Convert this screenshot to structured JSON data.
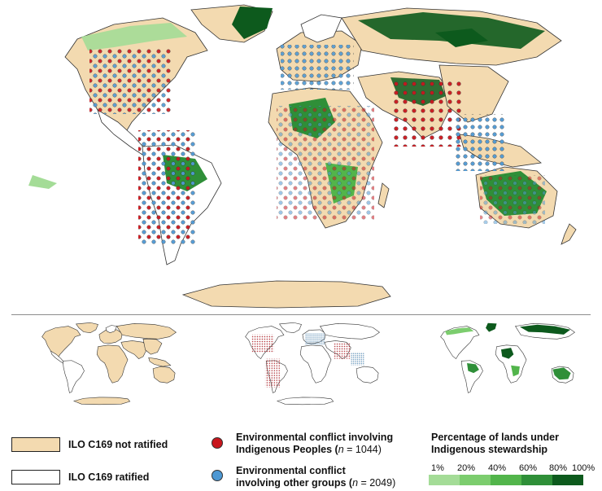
{
  "legend": {
    "not_ratified": "ILO C169 not ratified",
    "ratified": "ILO C169 ratified",
    "indigenous_line1": "Environmental conflict involving",
    "indigenous_line2_text": "Indigenous Peoples (",
    "indigenous_n_label": "n",
    "indigenous_n_value": " = 1044",
    "indigenous_close": ")",
    "other_line1": "Environmental conflict",
    "other_line2_text": "involving other groups (",
    "other_n_label": "n",
    "other_n_value": " = 2049",
    "other_close": ")",
    "stewardship_line1": "Percentage of lands under",
    "stewardship_line2": "Indigenous stewardship",
    "scale_ticks": [
      "1%",
      "20%",
      "40%",
      "60%",
      "80%",
      "100%"
    ]
  },
  "colors": {
    "not_ratified_fill": "#f3dab0",
    "ratified_fill": "#ffffff",
    "indigenous_dot": "#c8161d",
    "other_dot": "#4d98d3",
    "stewardship_scale": [
      "#a4dc97",
      "#7ccd6e",
      "#52b54b",
      "#2f8f38",
      "#0d5a1d"
    ]
  },
  "icons": {
    "indigenous_marker": "red-circle-icon",
    "other_marker": "blue-circle-icon"
  }
}
